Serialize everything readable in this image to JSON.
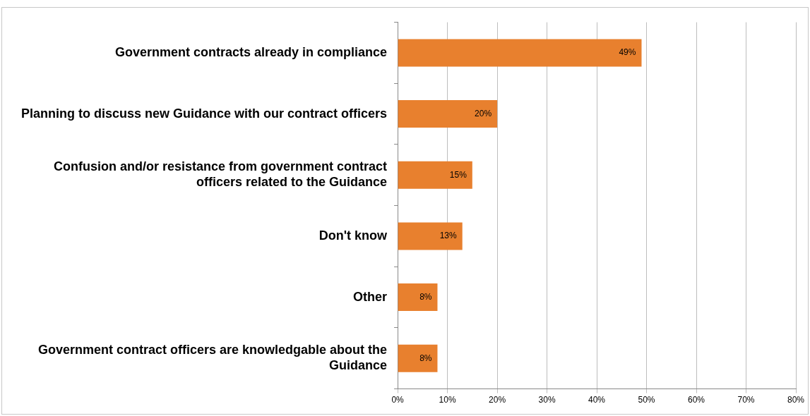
{
  "chart_data": {
    "type": "bar",
    "orientation": "horizontal",
    "categories": [
      "Government contracts already in compliance",
      "Planning to discuss new Guidance with our contract officers",
      "Confusion and/or resistance from government contract officers related to the Guidance",
      "Don't know",
      "Other",
      "Government contract officers are knowledgable about the Guidance"
    ],
    "values": [
      49,
      20,
      15,
      13,
      8,
      8
    ],
    "value_labels": [
      "49%",
      "20%",
      "15%",
      "13%",
      "8%",
      "8%"
    ],
    "color": "#e8802e",
    "xlim": [
      0,
      80
    ],
    "xticks": [
      {
        "value": 0,
        "label": "0%"
      },
      {
        "value": 10,
        "label": "10%"
      },
      {
        "value": 20,
        "label": "20%"
      },
      {
        "value": 30,
        "label": "30%"
      },
      {
        "value": 40,
        "label": "40%"
      },
      {
        "value": 50,
        "label": "50%"
      },
      {
        "value": 60,
        "label": "60%"
      },
      {
        "value": 70,
        "label": "70%"
      },
      {
        "value": 80,
        "label": "80%"
      }
    ],
    "grid": "x",
    "legend": false
  }
}
